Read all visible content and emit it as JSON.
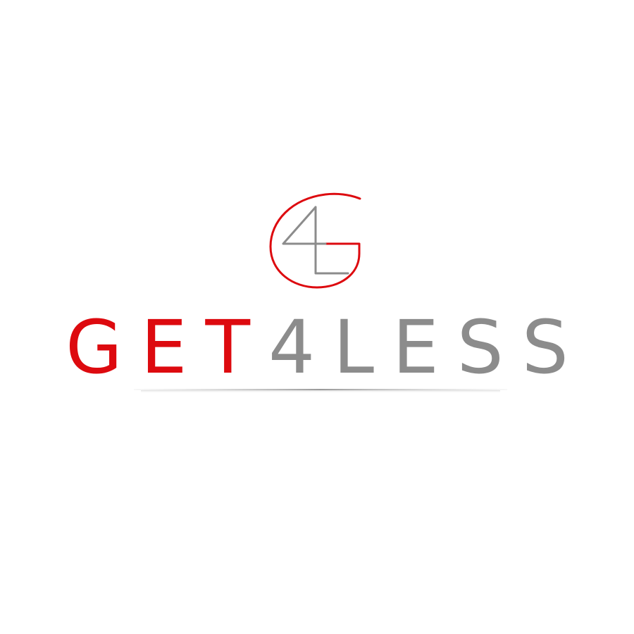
{
  "logo": {
    "monogram_text": "4G",
    "wordmark_part1": "GET",
    "wordmark_part2": "4LESS",
    "colors": {
      "primary_red": "#dd0a0f",
      "secondary_gray": "#8c8c8c",
      "background": "#ffffff"
    }
  }
}
